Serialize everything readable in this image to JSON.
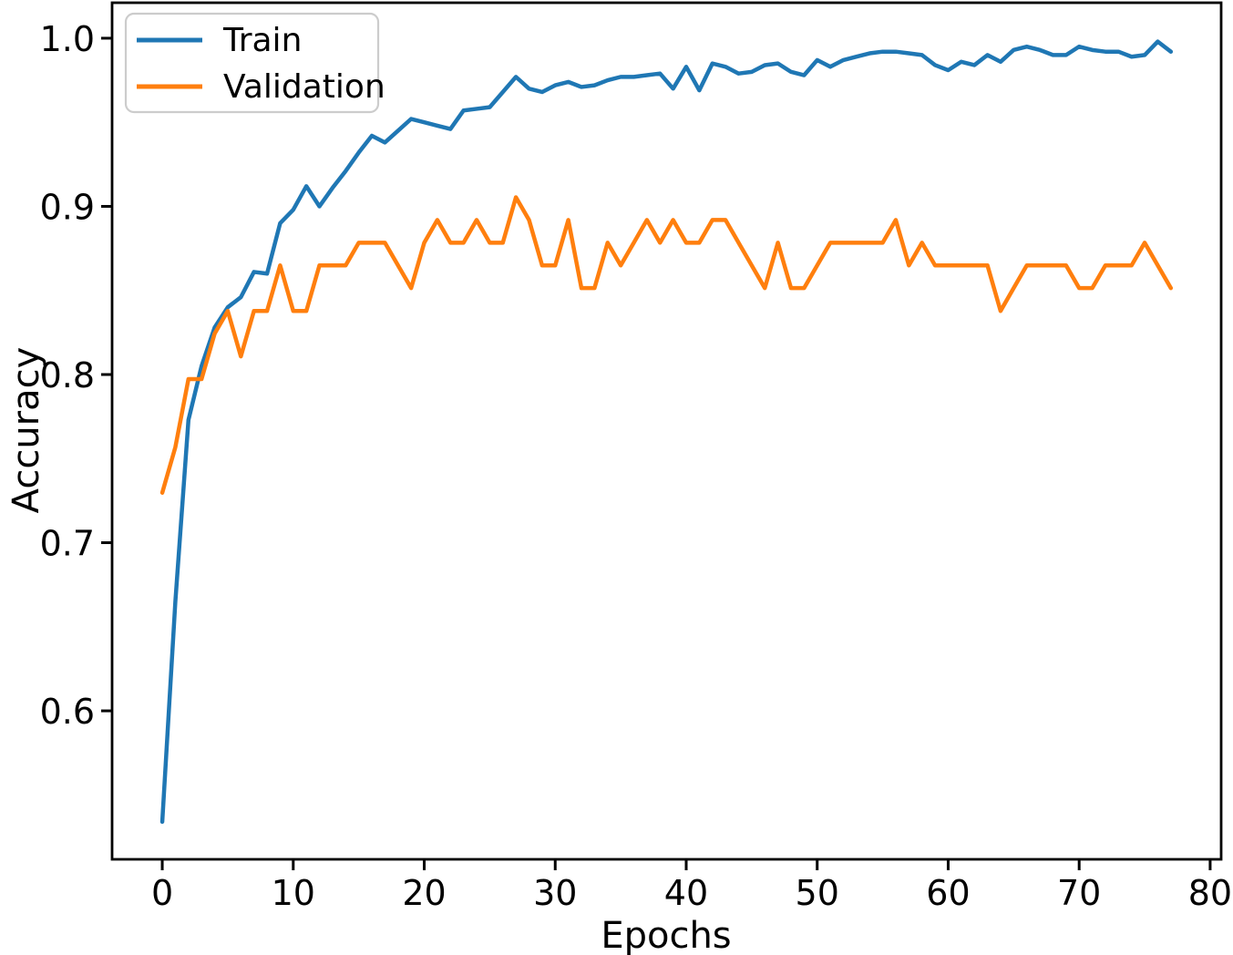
{
  "chart_data": {
    "type": "line",
    "title": "",
    "xlabel": "Epochs",
    "ylabel": "Accuracy",
    "legend_position": "upper left",
    "grid": false,
    "xlim": [
      -3.83,
      80.84
    ],
    "ylim": [
      0.5117,
      1.0211
    ],
    "x_ticks": [
      0,
      10,
      20,
      30,
      40,
      50,
      60,
      70,
      80
    ],
    "y_ticks": [
      0.6,
      0.7,
      0.8,
      0.9,
      1.0
    ],
    "x": [
      0,
      1,
      2,
      3,
      4,
      5,
      6,
      7,
      8,
      9,
      10,
      11,
      12,
      13,
      14,
      15,
      16,
      17,
      18,
      19,
      20,
      21,
      22,
      23,
      24,
      25,
      26,
      27,
      28,
      29,
      30,
      31,
      32,
      33,
      34,
      35,
      36,
      37,
      38,
      39,
      40,
      41,
      42,
      43,
      44,
      45,
      46,
      47,
      48,
      49,
      50,
      51,
      52,
      53,
      54,
      55,
      56,
      57,
      58,
      59,
      60,
      61,
      62,
      63,
      64,
      65,
      66,
      67,
      68,
      69,
      70,
      71,
      72,
      73,
      74,
      75,
      76,
      77
    ],
    "series": [
      {
        "name": "Train",
        "color": "#1f77b4",
        "values": [
          0.534,
          0.665,
          0.773,
          0.805,
          0.828,
          0.84,
          0.846,
          0.861,
          0.86,
          0.89,
          0.898,
          0.912,
          0.9,
          0.911,
          0.921,
          0.932,
          0.942,
          0.938,
          0.945,
          0.952,
          0.95,
          0.948,
          0.946,
          0.957,
          0.958,
          0.959,
          0.968,
          0.977,
          0.97,
          0.968,
          0.972,
          0.974,
          0.971,
          0.972,
          0.975,
          0.977,
          0.977,
          0.978,
          0.979,
          0.97,
          0.983,
          0.969,
          0.985,
          0.983,
          0.979,
          0.98,
          0.984,
          0.985,
          0.98,
          0.978,
          0.987,
          0.983,
          0.987,
          0.989,
          0.991,
          0.992,
          0.992,
          0.991,
          0.99,
          0.984,
          0.981,
          0.986,
          0.984,
          0.99,
          0.986,
          0.993,
          0.995,
          0.993,
          0.99,
          0.99,
          0.995,
          0.993,
          0.992,
          0.992,
          0.989,
          0.99,
          0.998,
          0.992
        ]
      },
      {
        "name": "Validation",
        "color": "#ff7f0e",
        "values": [
          0.7297,
          0.7568,
          0.7973,
          0.7973,
          0.8243,
          0.8378,
          0.8108,
          0.8378,
          0.8378,
          0.8649,
          0.8378,
          0.8378,
          0.8649,
          0.8649,
          0.8649,
          0.8784,
          0.8784,
          0.8784,
          0.8649,
          0.8514,
          0.8784,
          0.8919,
          0.8784,
          0.8784,
          0.8919,
          0.8784,
          0.8784,
          0.9054,
          0.8919,
          0.8649,
          0.8649,
          0.8919,
          0.8514,
          0.8514,
          0.8784,
          0.8649,
          0.8784,
          0.8919,
          0.8784,
          0.8919,
          0.8784,
          0.8784,
          0.8919,
          0.8919,
          0.8784,
          0.8649,
          0.8514,
          0.8784,
          0.8514,
          0.8514,
          0.8649,
          0.8784,
          0.8784,
          0.8784,
          0.8784,
          0.8784,
          0.8919,
          0.8649,
          0.8784,
          0.8649,
          0.8649,
          0.8649,
          0.8649,
          0.8649,
          0.8378,
          0.8514,
          0.8649,
          0.8649,
          0.8649,
          0.8649,
          0.8514,
          0.8514,
          0.8649,
          0.8649,
          0.8649,
          0.8784,
          0.8649,
          0.8514
        ]
      }
    ]
  }
}
